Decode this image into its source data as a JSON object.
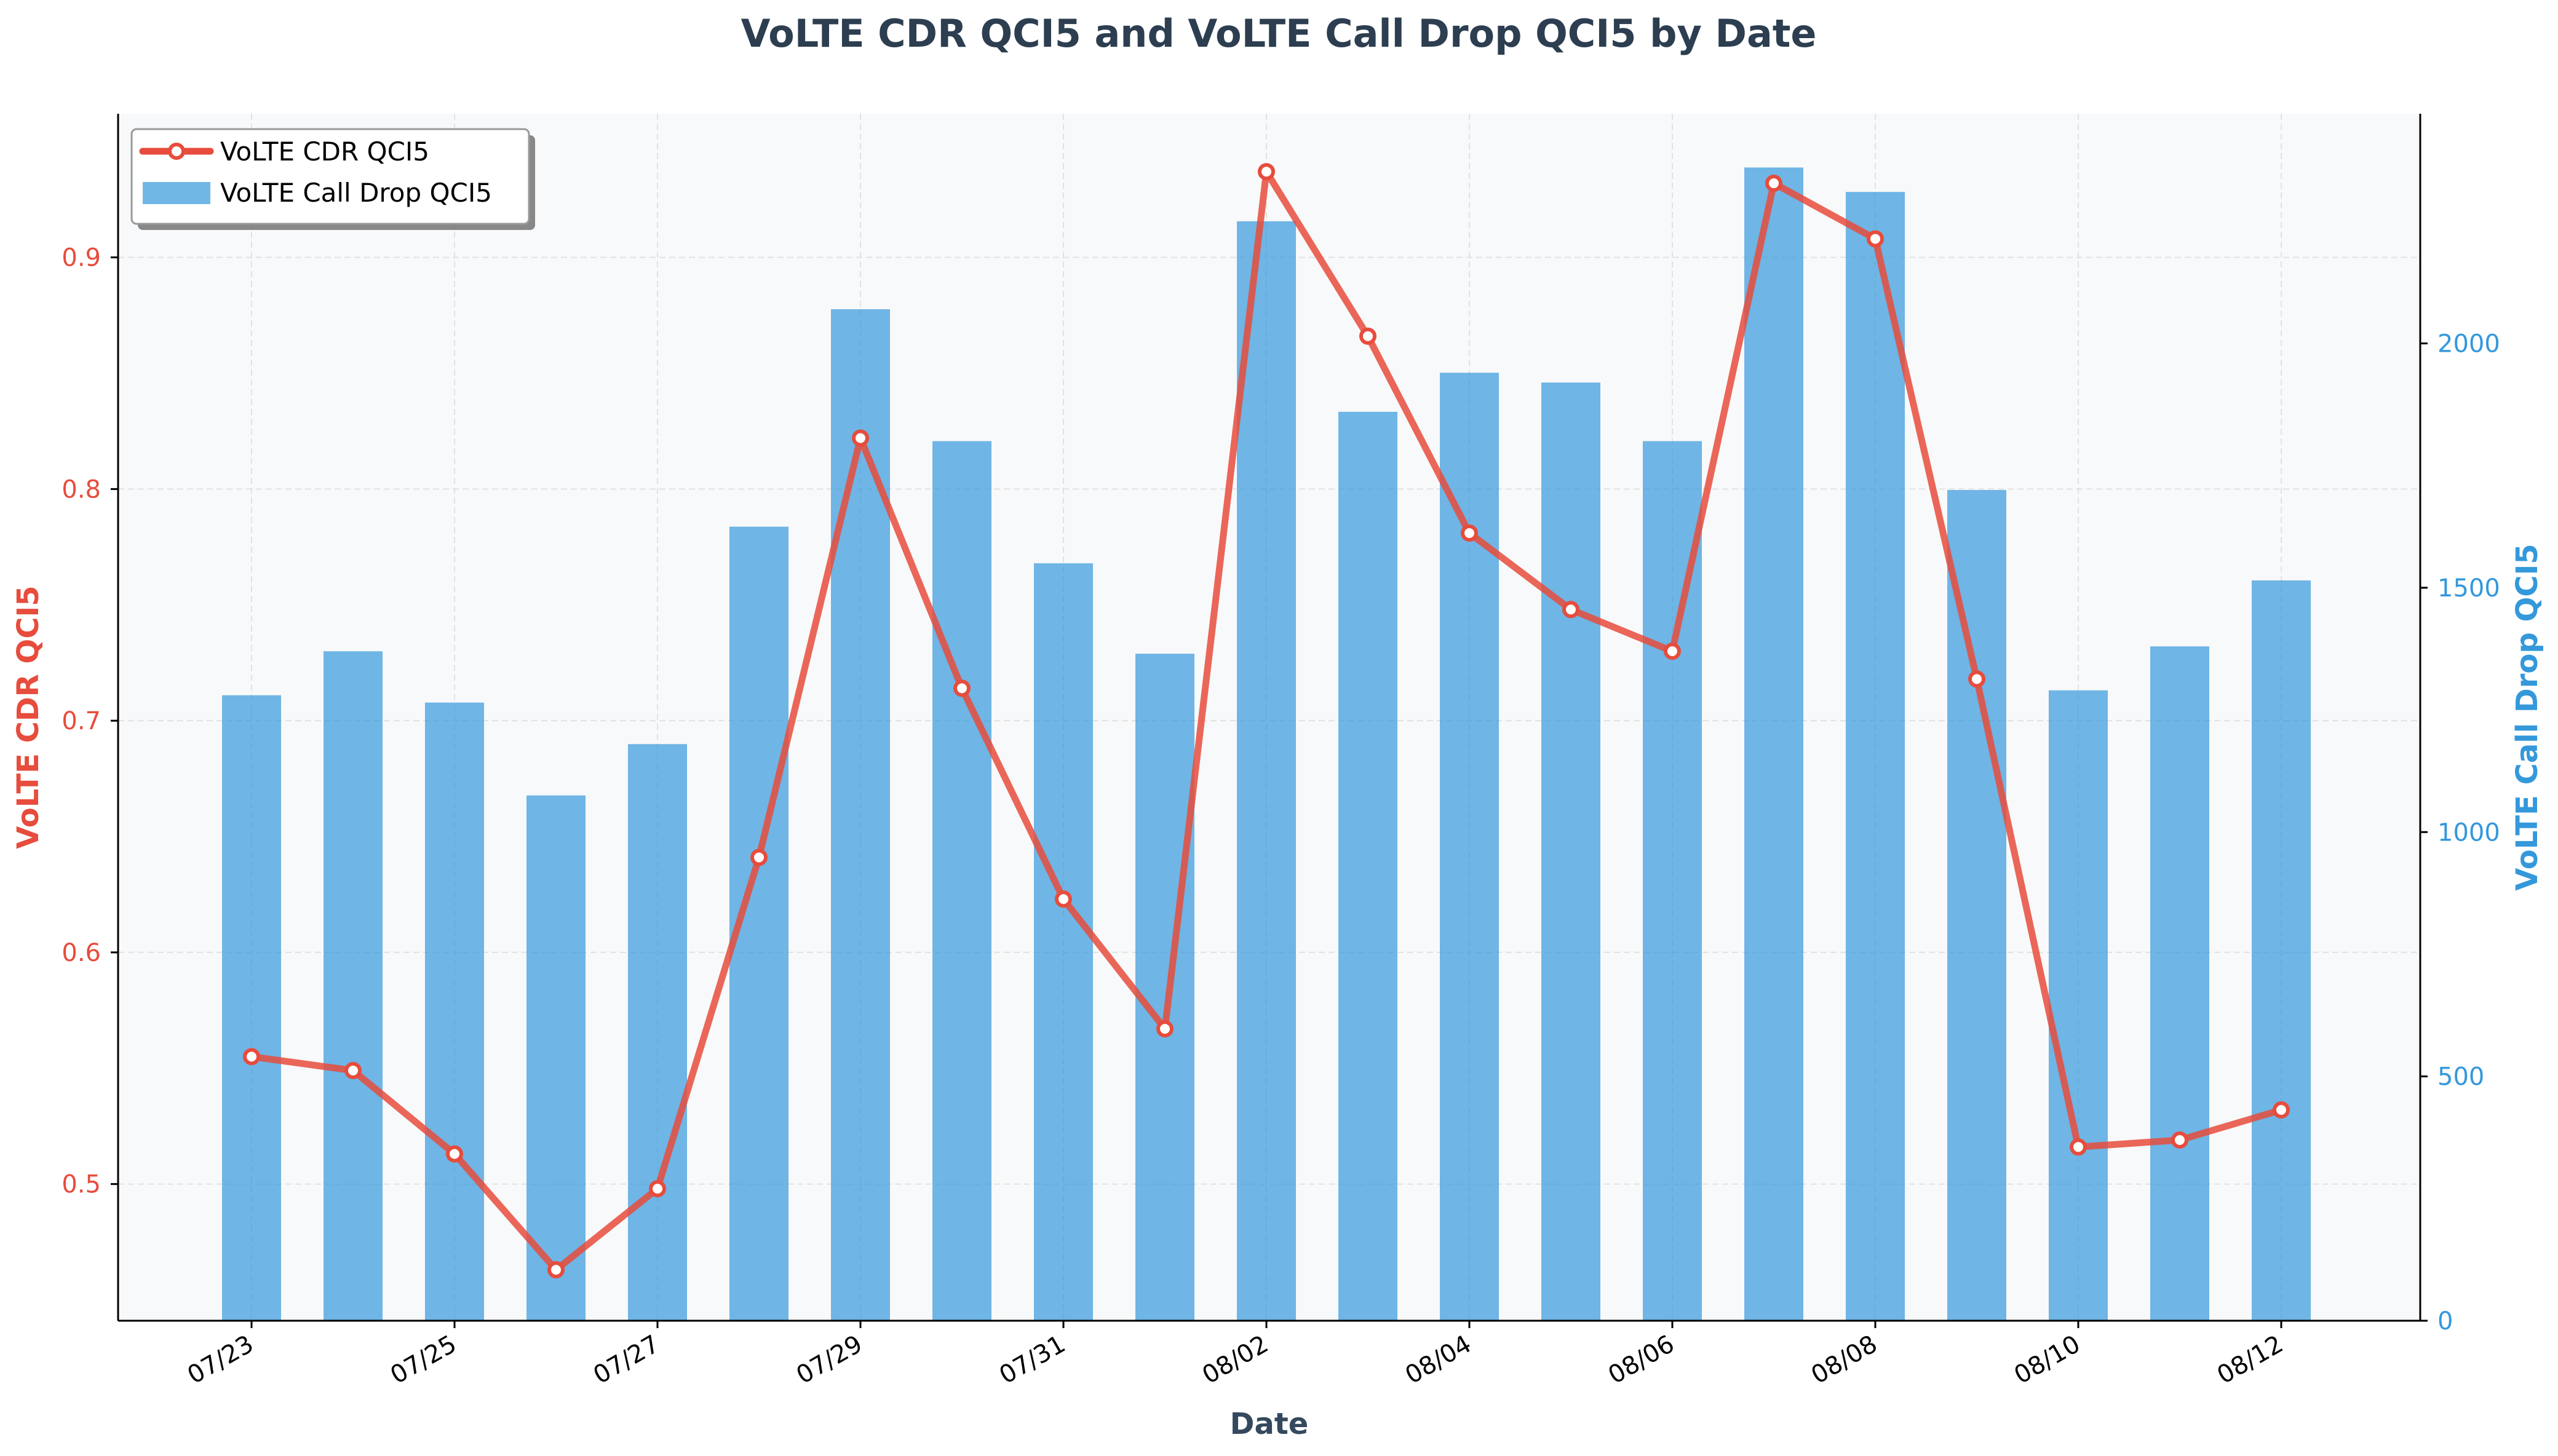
{
  "chart_data": {
    "type": "bar",
    "title": "VoLTE CDR QCI5 and VoLTE Call Drop QCI5 by Date",
    "xlabel": "Date",
    "ylabel_left": "VoLTE CDR QCI5",
    "ylabel_right": "VoLTE Call Drop QCI5",
    "categories": [
      "07/23",
      "07/24",
      "07/25",
      "07/26",
      "07/27",
      "07/28",
      "07/29",
      "07/30",
      "07/31",
      "08/01",
      "08/02",
      "08/03",
      "08/04",
      "08/05",
      "08/06",
      "08/07",
      "08/08",
      "08/09",
      "08/10",
      "08/11",
      "08/12"
    ],
    "x_tick_labels": [
      "07/23",
      "07/25",
      "07/27",
      "07/29",
      "07/31",
      "08/02",
      "08/04",
      "08/06",
      "08/08",
      "08/10",
      "08/12"
    ],
    "y_left": {
      "min": 0.441,
      "max": 0.962,
      "ticks": [
        0.5,
        0.6,
        0.7,
        0.8,
        0.9
      ],
      "tick_labels": [
        "0.5",
        "0.6",
        "0.7",
        "0.8",
        "0.9"
      ]
    },
    "y_right": {
      "min": 0,
      "max": 2470,
      "ticks": [
        0,
        500,
        1000,
        1500,
        2000
      ],
      "tick_labels": [
        "0",
        "500",
        "1000",
        "1500",
        "2000"
      ]
    },
    "grid": true,
    "legend_position": "top-left",
    "series": [
      {
        "name": "VoLTE CDR QCI5",
        "type": "line",
        "axis": "left",
        "color": "#e74c3c",
        "values": [
          0.555,
          0.549,
          0.513,
          0.463,
          0.498,
          0.641,
          0.822,
          0.714,
          0.623,
          0.567,
          0.937,
          0.866,
          0.781,
          0.748,
          0.73,
          0.932,
          0.908,
          0.718,
          0.516,
          0.519,
          0.532
        ]
      },
      {
        "name": "VoLTE Call Drop QCI5",
        "type": "bar",
        "axis": "right",
        "color": "#3498db",
        "values": [
          1280,
          1370,
          1265,
          1075,
          1180,
          1625,
          2070,
          1800,
          1550,
          1365,
          2250,
          1860,
          1940,
          1920,
          1800,
          2360,
          2310,
          1700,
          1290,
          1380,
          1515
        ]
      }
    ]
  }
}
